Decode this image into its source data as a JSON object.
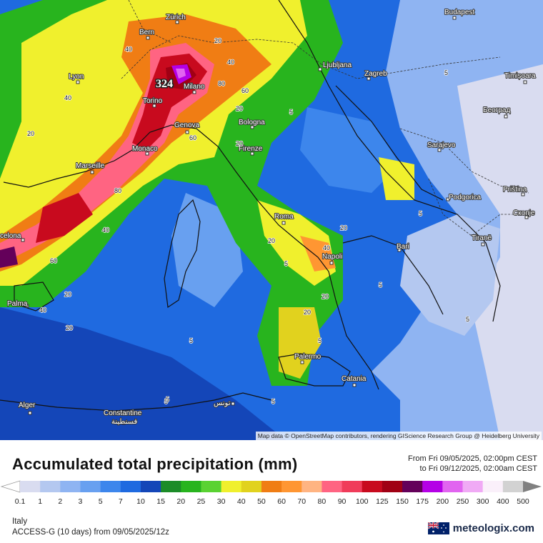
{
  "title": "Accumulated total precipitation (mm)",
  "period": {
    "from": "From Fri 09/05/2025, 02:00pm CEST",
    "to": "to Fri 09/12/2025, 02:00am CEST"
  },
  "attribution": "Map data © OpenStreetMap contributors, rendering GIScience Research Group @ Heidelberg University",
  "region": "Italy",
  "model": "ACCESS-G (10 days) from 09/05/2025/12z",
  "brand": "meteologix.com",
  "flag_icon": "australia-flag-icon",
  "max_value": "324",
  "legend": {
    "labels": [
      "0.1",
      "1",
      "2",
      "3",
      "5",
      "7",
      "10",
      "15",
      "20",
      "25",
      "30",
      "40",
      "50",
      "60",
      "70",
      "80",
      "90",
      "100",
      "125",
      "150",
      "175",
      "200",
      "250",
      "300",
      "400",
      "500"
    ],
    "colors": [
      "#d9dcf0",
      "#b4c8f0",
      "#8fb4f2",
      "#68a0f0",
      "#3d86ec",
      "#1f6ae0",
      "#1446b8",
      "#1c8c28",
      "#28b41e",
      "#5ad232",
      "#f0f02d",
      "#e1d21e",
      "#f07d14",
      "#ff9632",
      "#ffb482",
      "#ff6482",
      "#f03c5a",
      "#c80a1e",
      "#a00014",
      "#64005a",
      "#b400e6",
      "#e164f0",
      "#f0aaf5",
      "#faf0fa",
      "#d2d2d2"
    ]
  },
  "cities": [
    {
      "name": "Zürich"
    },
    {
      "name": "Bern"
    },
    {
      "name": "Lyon"
    },
    {
      "name": "Milano"
    },
    {
      "name": "Torino"
    },
    {
      "name": "Genova"
    },
    {
      "name": "Monaco"
    },
    {
      "name": "Marseille"
    },
    {
      "name": "Bologna"
    },
    {
      "name": "Firenze"
    },
    {
      "name": "Roma"
    },
    {
      "name": "Napoli"
    },
    {
      "name": "Bari"
    },
    {
      "name": "Palermo"
    },
    {
      "name": "Catania"
    },
    {
      "name": "Ljubljana"
    },
    {
      "name": "Zagreb"
    },
    {
      "name": "Budapest"
    },
    {
      "name": "Timișoara"
    },
    {
      "name": "Београд"
    },
    {
      "name": "Sarajevo"
    },
    {
      "name": "Podgorica"
    },
    {
      "name": "Priština"
    },
    {
      "name": "Скопје"
    },
    {
      "name": "Tiranë"
    },
    {
      "name": "celona"
    },
    {
      "name": "Palma"
    },
    {
      "name": "Alger"
    },
    {
      "name": "Constantine"
    },
    {
      "name": "قسنطينة"
    },
    {
      "name": "تونس"
    }
  ],
  "map_values": [
    "40",
    "40",
    "20",
    "80",
    "60",
    "40",
    "20",
    "40",
    "20",
    "5",
    "5",
    "20",
    "60",
    "80",
    "60",
    "40",
    "20",
    "20",
    "5",
    "20",
    "40",
    "5",
    "20",
    "20",
    "5",
    "5",
    "5",
    "5",
    "5",
    "5",
    "20",
    "5"
  ]
}
